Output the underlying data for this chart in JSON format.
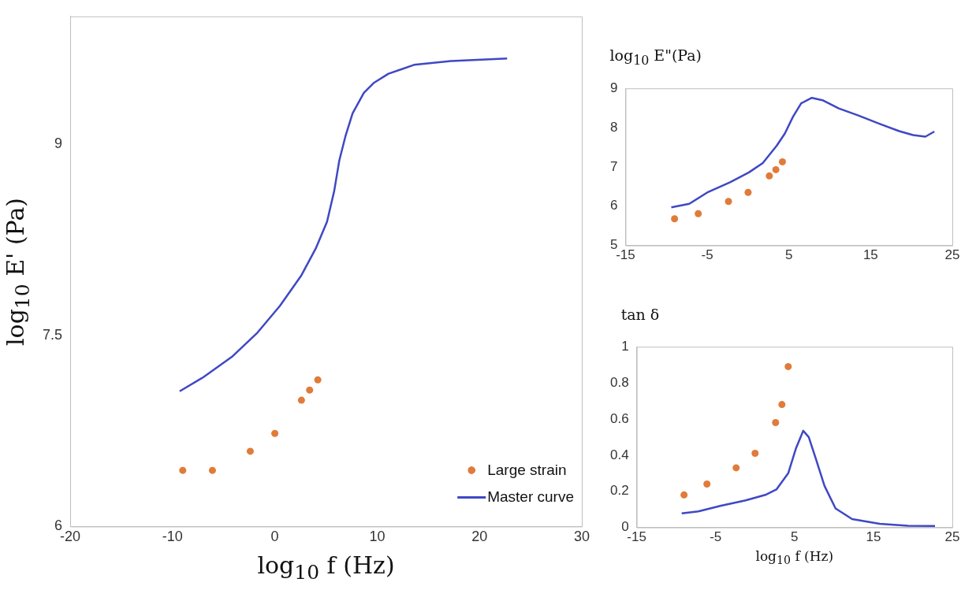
{
  "chart_data": [
    {
      "type": "scatter",
      "xlabel": "log$_{10}$ f (Hz)",
      "ylabel": "log$_{10}$ E' (Pa)",
      "xlim": [
        -20,
        30
      ],
      "xticks": [
        -20,
        -10,
        0,
        10,
        20,
        30
      ],
      "ylim": [
        6,
        10
      ],
      "yticks": [
        6,
        7.5,
        9
      ],
      "legend": "bottom right",
      "series": [
        {
          "name": "Large strain",
          "type": "scatter",
          "marker": "circle",
          "color": "#e07b39",
          "x": [
            -9,
            -6.1,
            -2.4,
            0,
            2.6,
            3.4,
            4.2
          ],
          "values": [
            6.44,
            6.44,
            6.59,
            6.73,
            6.99,
            7.07,
            7.15
          ]
        },
        {
          "name": "Master curve",
          "type": "line",
          "marker": "none",
          "color": "#3f48c4",
          "x": [
            -9.3,
            -7,
            -4.2,
            -1.7,
            0.5,
            2.6,
            4,
            5.1,
            5.8,
            6.3,
            6.9,
            7.6,
            8.7,
            9.7,
            11.1,
            13.6,
            17.2,
            22.7
          ],
          "values": [
            7.06,
            7.17,
            7.33,
            7.52,
            7.73,
            7.97,
            8.18,
            8.39,
            8.63,
            8.87,
            9.06,
            9.24,
            9.4,
            9.48,
            9.55,
            9.62,
            9.65,
            9.67
          ]
        }
      ]
    },
    {
      "type": "scatter",
      "ylabel": "log$_{10}$ E\"(Pa)",
      "xlim": [
        -15,
        25
      ],
      "xticks": [
        -15,
        -5,
        5,
        15,
        25
      ],
      "ylim": [
        5,
        9
      ],
      "yticks": [
        5,
        6,
        7,
        8,
        9
      ],
      "series": [
        {
          "type": "line",
          "marker": "none",
          "color": "#3f48c4",
          "x": [
            -9.4,
            -7.2,
            -4.9,
            -2.2,
            0.1,
            1.8,
            3.5,
            4.5,
            5.5,
            6.5,
            7.8,
            9.1,
            11.1,
            13.5,
            16.2,
            18.5,
            20.2,
            21.7,
            22.8
          ],
          "values": [
            5.97,
            6.06,
            6.36,
            6.61,
            6.86,
            7.1,
            7.54,
            7.85,
            8.28,
            8.62,
            8.76,
            8.7,
            8.49,
            8.31,
            8.09,
            7.91,
            7.81,
            7.77,
            7.9
          ]
        },
        {
          "type": "scatter",
          "marker": "circle",
          "color": "#e07b39",
          "x": [
            -9,
            -6.1,
            -2.4,
            0,
            2.6,
            3.4,
            4.2
          ],
          "values": [
            5.68,
            5.81,
            6.12,
            6.35,
            6.77,
            6.93,
            7.13
          ]
        }
      ]
    },
    {
      "type": "scatter",
      "xlabel": "log$_{10}$ f (Hz)",
      "ylabel": "tan δ",
      "xlim": [
        -15,
        25
      ],
      "xticks": [
        -15,
        -5,
        5,
        15,
        25
      ],
      "ylim": [
        0,
        1
      ],
      "yticks": [
        0,
        0.2,
        0.4,
        0.6,
        0.8,
        1
      ],
      "series": [
        {
          "type": "line",
          "marker": "none",
          "color": "#3f48c4",
          "x": [
            -9.3,
            -7.2,
            -4.3,
            -1.2,
            1.3,
            2.7,
            4.2,
            5.2,
            6.1,
            6.8,
            7.7,
            8.8,
            10.2,
            12.3,
            15.8,
            19.4,
            22.8
          ],
          "values": [
            0.078,
            0.089,
            0.12,
            0.15,
            0.18,
            0.21,
            0.3,
            0.44,
            0.535,
            0.5,
            0.38,
            0.23,
            0.105,
            0.046,
            0.02,
            0.009,
            0.008
          ]
        },
        {
          "type": "scatter",
          "marker": "circle",
          "color": "#e07b39",
          "x": [
            -9,
            -6.1,
            -2.4,
            0,
            2.6,
            3.4,
            4.2
          ],
          "values": [
            0.18,
            0.24,
            0.33,
            0.41,
            0.58,
            0.68,
            0.89
          ]
        }
      ]
    }
  ]
}
